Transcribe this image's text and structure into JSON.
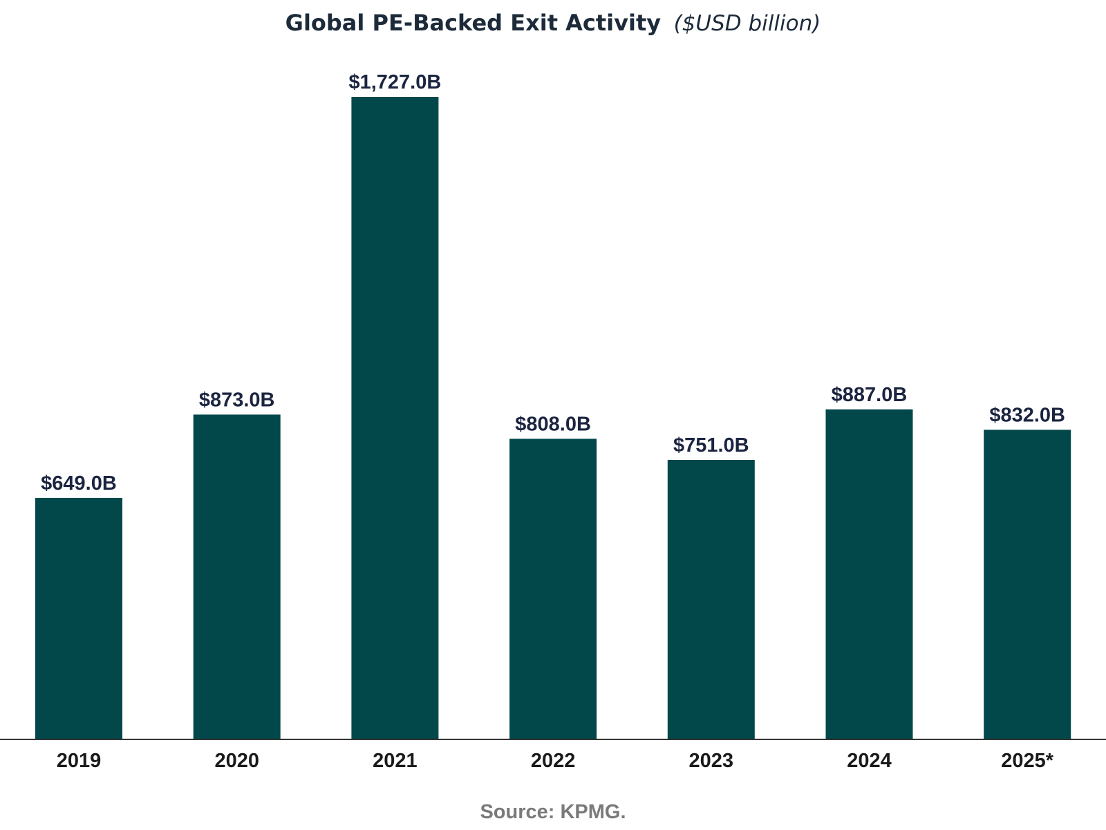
{
  "chart_data": {
    "type": "bar",
    "title": "Global PE-Backed Exit Activity",
    "subtitle": "($USD billion)",
    "categories": [
      "2019",
      "2020",
      "2021",
      "2022",
      "2023",
      "2024",
      "2025*"
    ],
    "values": [
      649.0,
      873.0,
      1727.0,
      808.0,
      751.0,
      887.0,
      832.0
    ],
    "data_labels": [
      "$649.0B",
      "$873.0B",
      "$1,727.0B",
      "$808.0B",
      "$751.0B",
      "$887.0B",
      "$832.0B"
    ],
    "xlabel": "",
    "ylabel": "",
    "ylim": [
      0,
      1800
    ],
    "grid": false,
    "source": "Source: KPMG.",
    "colors": {
      "bar": "#02484a",
      "axis": "#333333"
    }
  }
}
